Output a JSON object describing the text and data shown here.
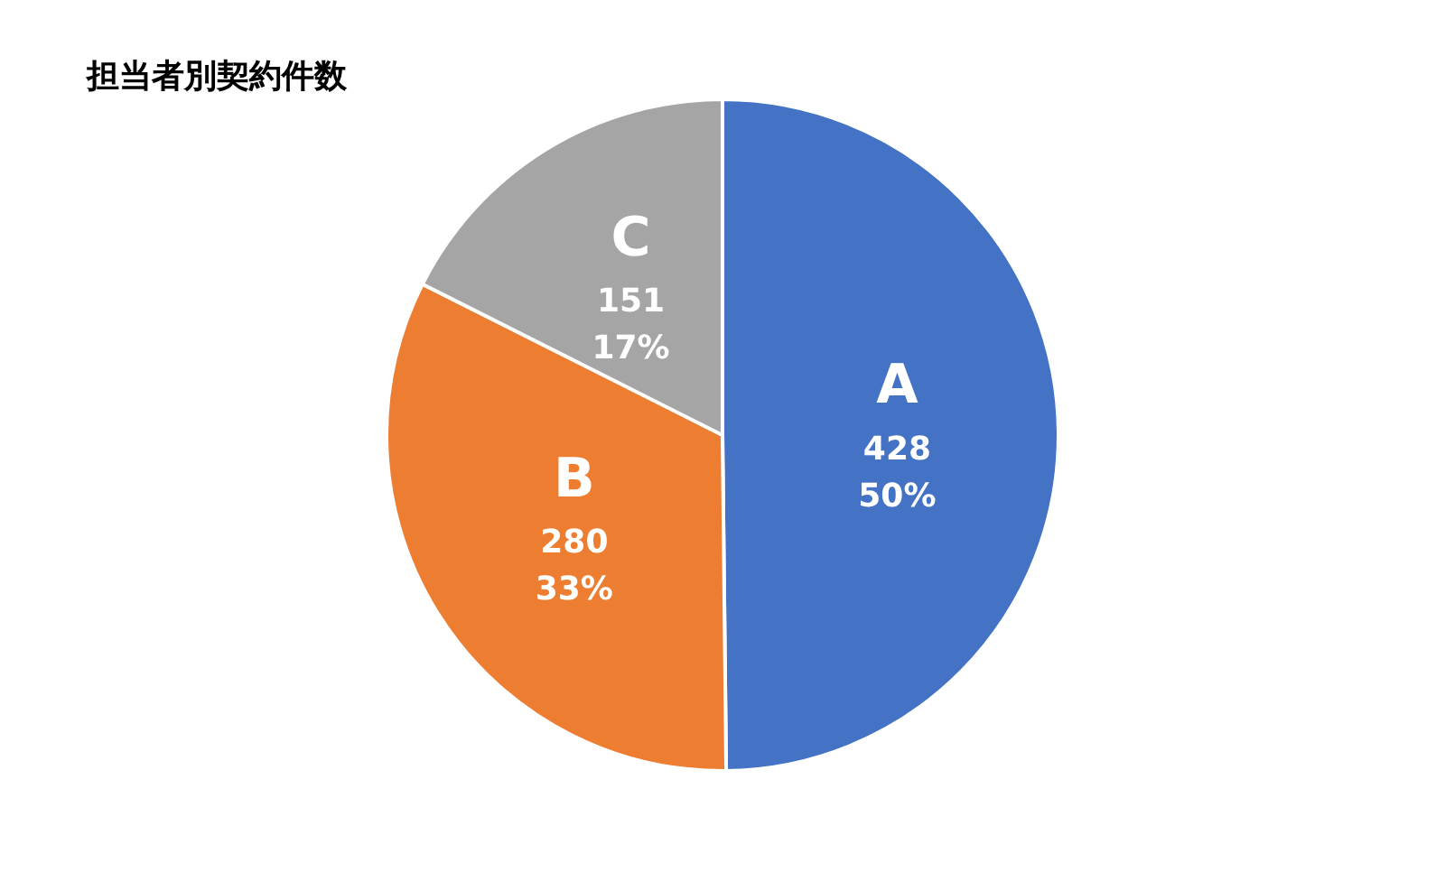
{
  "chart_data": {
    "type": "pie",
    "title": "担当者別契約件数",
    "categories": [
      "A",
      "B",
      "C"
    ],
    "values": [
      428,
      280,
      151
    ],
    "colors": [
      "#4472c4",
      "#ed7d31",
      "#a5a5a5"
    ],
    "value_labels": [
      "428\n50%",
      "280\n33%",
      "151\n17%"
    ]
  }
}
